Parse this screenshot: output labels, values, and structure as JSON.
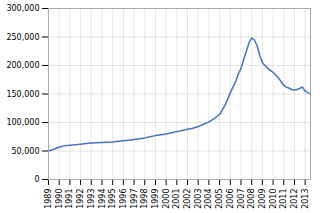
{
  "chart_data": {
    "type": "line",
    "x": [
      1989.0,
      1989.5,
      1990.0,
      1990.5,
      1991.0,
      1991.5,
      1992.0,
      1992.5,
      1993.0,
      1993.5,
      1994.0,
      1994.5,
      1995.0,
      1995.5,
      1996.0,
      1996.5,
      1997.0,
      1997.5,
      1998.0,
      1998.5,
      1999.0,
      1999.5,
      2000.0,
      2000.5,
      2001.0,
      2001.5,
      2002.0,
      2002.5,
      2003.0,
      2003.5,
      2004.0,
      2004.5,
      2005.0,
      2005.5,
      2006.0,
      2006.25,
      2006.5,
      2006.75,
      2007.0,
      2007.25,
      2007.5,
      2007.75,
      2008.0,
      2008.25,
      2008.5,
      2008.75,
      2009.0,
      2009.5,
      2010.0,
      2010.25,
      2010.5,
      2010.75,
      2011.0,
      2011.25,
      2011.5,
      2011.75,
      2012.0,
      2012.25,
      2012.5,
      2012.75,
      2013.0,
      2013.5
    ],
    "values": [
      50000,
      53000,
      57000,
      59000,
      60000,
      61000,
      62000,
      63000,
      64000,
      64500,
      65000,
      65500,
      66000,
      67000,
      68000,
      69000,
      70000,
      71500,
      73000,
      75000,
      77000,
      78500,
      80000,
      82000,
      84000,
      86000,
      88000,
      90000,
      93000,
      97000,
      101000,
      107000,
      114000,
      130000,
      152000,
      162000,
      172000,
      185000,
      195000,
      210000,
      225000,
      240000,
      248000,
      245000,
      235000,
      218000,
      205000,
      195000,
      188000,
      183000,
      178000,
      172000,
      165000,
      162000,
      160000,
      158000,
      157000,
      158000,
      160000,
      162000,
      155000,
      150000
    ],
    "color": "#4472c4",
    "xlim": [
      1989,
      2013.5
    ],
    "xticks": [
      1989,
      1990,
      1991,
      1992,
      1993,
      1994,
      1995,
      1996,
      1997,
      1998,
      1999,
      2000,
      2001,
      2002,
      2003,
      2004,
      2005,
      2006,
      2007,
      2008,
      2009,
      2010,
      2011,
      2012,
      2013
    ],
    "ylim": [
      0,
      300000
    ],
    "yticks": [
      0,
      {
        "value": 50000,
        "label": "50,000"
      },
      {
        "value": 100000,
        "label": "100,000"
      },
      {
        "value": 150000,
        "label": "150,000"
      },
      {
        "value": 200000,
        "label": "200,000"
      },
      {
        "value": 250000,
        "label": "250,000"
      },
      {
        "value": 300000,
        "label": "300,000"
      }
    ],
    "grid": true
  }
}
